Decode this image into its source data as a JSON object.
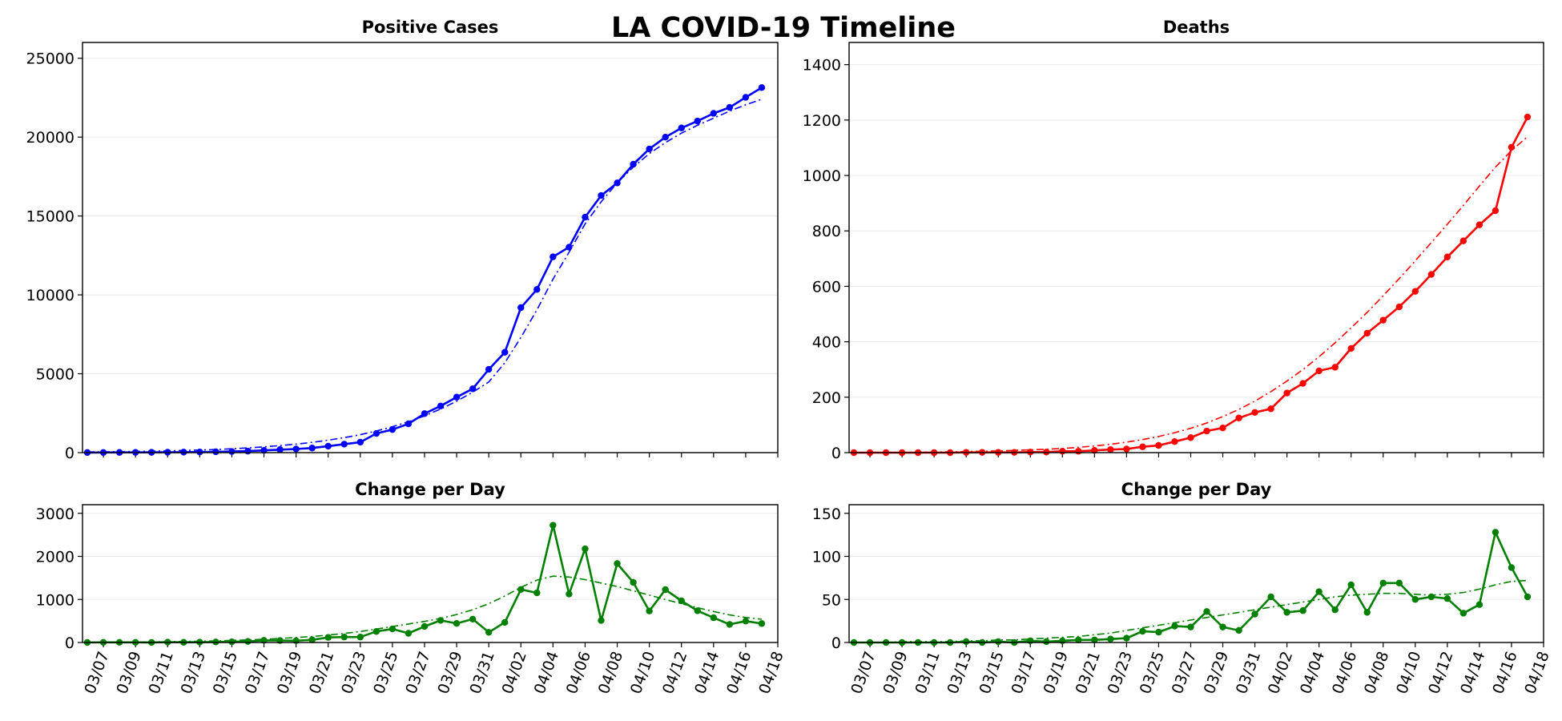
{
  "title": "LA COVID-19 Timeline",
  "colors": {
    "cases": "#0000ff",
    "deaths": "#ff0000",
    "change": "#008000",
    "grid": "#ebebeb"
  },
  "x_tick_labels": [
    "03/07",
    "03/09",
    "03/11",
    "03/13",
    "03/15",
    "03/17",
    "03/19",
    "03/21",
    "03/23",
    "03/25",
    "03/27",
    "03/29",
    "03/31",
    "04/02",
    "04/04",
    "04/06",
    "04/08",
    "04/10",
    "04/12",
    "04/14",
    "04/16",
    "04/18"
  ],
  "chart_data": [
    {
      "id": "cases",
      "type": "line",
      "title": "Positive Cases",
      "x": [
        "03/06",
        "03/07",
        "03/08",
        "03/09",
        "03/10",
        "03/11",
        "03/12",
        "03/13",
        "03/14",
        "03/15",
        "03/16",
        "03/17",
        "03/18",
        "03/19",
        "03/20",
        "03/21",
        "03/22",
        "03/23",
        "03/24",
        "03/25",
        "03/26",
        "03/27",
        "03/28",
        "03/29",
        "03/30",
        "03/31",
        "04/01",
        "04/02",
        "04/03",
        "04/04",
        "04/05",
        "04/06",
        "04/07",
        "04/08",
        "04/09",
        "04/10",
        "04/11",
        "04/12",
        "04/13",
        "04/14",
        "04/15",
        "04/16",
        "04/17"
      ],
      "series": [
        {
          "style": "solid-marker",
          "values": [
            7,
            11,
            14,
            17,
            19,
            27,
            32,
            40,
            53,
            69,
            94,
            144,
            190,
            231,
            292,
            409,
            536,
            662,
            1216,
            1465,
            1829,
            2474,
            2955,
            3518,
            4045,
            5277,
            6360,
            9192,
            10345,
            12411,
            13023,
            14924,
            16298,
            17095,
            18281,
            19250,
            19997,
            20579,
            21017,
            21507,
            21884,
            22522,
            23140
          ]
        },
        {
          "style": "dashdot",
          "values": [
            40,
            50,
            60,
            75,
            90,
            110,
            135,
            165,
            200,
            245,
            300,
            365,
            445,
            540,
            650,
            790,
            950,
            1140,
            1370,
            1640,
            1960,
            2330,
            2760,
            3260,
            3830,
            4480,
            5700,
            7300,
            9050,
            11000,
            12700,
            14500,
            15900,
            17100,
            18100,
            18950,
            19650,
            20250,
            20750,
            21200,
            21650,
            22050,
            22400
          ]
        }
      ],
      "ylim": [
        0,
        26000
      ],
      "yticks": [
        0,
        5000,
        10000,
        15000,
        20000,
        25000
      ],
      "grid": true
    },
    {
      "id": "deaths",
      "type": "line",
      "title": "Deaths",
      "x": [
        "03/06",
        "03/07",
        "03/08",
        "03/09",
        "03/10",
        "03/11",
        "03/12",
        "03/13",
        "03/14",
        "03/15",
        "03/16",
        "03/17",
        "03/18",
        "03/19",
        "03/20",
        "03/21",
        "03/22",
        "03/23",
        "03/24",
        "03/25",
        "03/26",
        "03/27",
        "03/28",
        "03/29",
        "03/30",
        "03/31",
        "04/01",
        "04/02",
        "04/03",
        "04/04",
        "04/05",
        "04/06",
        "04/07",
        "04/08",
        "04/09",
        "04/10",
        "04/11",
        "04/12",
        "04/13",
        "04/14",
        "04/15",
        "04/16",
        "04/17"
      ],
      "series": [
        {
          "style": "solid-marker",
          "values": [
            0,
            0,
            0,
            0,
            0,
            0,
            0,
            1,
            1,
            1,
            1,
            2,
            2,
            5,
            5,
            8,
            11,
            13,
            21,
            26,
            40,
            54,
            78,
            89,
            125,
            145,
            158,
            215,
            250,
            295,
            308,
            376,
            431,
            478,
            526,
            582,
            643,
            706,
            764,
            822,
            873,
            1102,
            1211
          ]
        },
        {
          "style": "dashdot",
          "values": [
            0,
            1,
            1,
            1,
            2,
            2,
            3,
            4,
            5,
            6,
            8,
            10,
            12,
            15,
            19,
            24,
            30,
            38,
            47,
            58,
            72,
            88,
            107,
            130,
            156,
            186,
            220,
            258,
            300,
            346,
            396,
            450,
            506,
            566,
            628,
            692,
            758,
            824,
            892,
            962,
            1030,
            1090,
            1140
          ]
        }
      ],
      "ylim": [
        0,
        1480
      ],
      "yticks": [
        0,
        200,
        400,
        600,
        800,
        1000,
        1200,
        1400
      ],
      "grid": true
    },
    {
      "id": "cases-change",
      "type": "line",
      "title": "Change per Day",
      "x": [
        "03/06",
        "03/07",
        "03/08",
        "03/09",
        "03/10",
        "03/11",
        "03/12",
        "03/13",
        "03/14",
        "03/15",
        "03/16",
        "03/17",
        "03/18",
        "03/19",
        "03/20",
        "03/21",
        "03/22",
        "03/23",
        "03/24",
        "03/25",
        "03/26",
        "03/27",
        "03/28",
        "03/29",
        "03/30",
        "03/31",
        "04/01",
        "04/02",
        "04/03",
        "04/04",
        "04/05",
        "04/06",
        "04/07",
        "04/08",
        "04/09",
        "04/10",
        "04/11",
        "04/12",
        "04/13",
        "04/14",
        "04/15",
        "04/16",
        "04/17"
      ],
      "series": [
        {
          "style": "solid-marker",
          "values": [
            0,
            4,
            3,
            3,
            2,
            8,
            5,
            8,
            13,
            16,
            25,
            50,
            46,
            41,
            61,
            117,
            127,
            126,
            256,
            315,
            214,
            373,
            513,
            443,
            543,
            236,
            467,
            1232,
            1153,
            2723,
            1126,
            2175,
            510,
            1833,
            1395,
            731,
            1228,
            968,
            736,
            575,
            420,
            496,
            440
          ]
        },
        {
          "style": "dashdot",
          "values": [
            5,
            7,
            9,
            12,
            15,
            19,
            24,
            30,
            38,
            48,
            60,
            75,
            93,
            115,
            140,
            172,
            210,
            255,
            310,
            370,
            430,
            490,
            560,
            650,
            760,
            900,
            1080,
            1280,
            1450,
            1540,
            1520,
            1460,
            1380,
            1300,
            1200,
            1100,
            1000,
            900,
            810,
            720,
            640,
            580,
            540
          ]
        }
      ],
      "ylim": [
        0,
        3200
      ],
      "yticks": [
        0,
        1000,
        2000,
        3000
      ],
      "grid": true
    },
    {
      "id": "deaths-change",
      "type": "line",
      "title": "Change per Day",
      "x": [
        "03/06",
        "03/07",
        "03/08",
        "03/09",
        "03/10",
        "03/11",
        "03/12",
        "03/13",
        "03/14",
        "03/15",
        "03/16",
        "03/17",
        "03/18",
        "03/19",
        "03/20",
        "03/21",
        "03/22",
        "03/23",
        "03/24",
        "03/25",
        "03/26",
        "03/27",
        "03/28",
        "03/29",
        "03/30",
        "03/31",
        "04/01",
        "04/02",
        "04/03",
        "04/04",
        "04/05",
        "04/06",
        "04/07",
        "04/08",
        "04/09",
        "04/10",
        "04/11",
        "04/12",
        "04/13",
        "04/14",
        "04/15",
        "04/16",
        "04/17"
      ],
      "series": [
        {
          "style": "solid-marker",
          "values": [
            0,
            0,
            0,
            0,
            0,
            0,
            0,
            1,
            0,
            1,
            0,
            2,
            1,
            2,
            3,
            3,
            4,
            5,
            13,
            12,
            19,
            18,
            36,
            18,
            14,
            33,
            53,
            35,
            37,
            59,
            38,
            67,
            35,
            69,
            69,
            50,
            53,
            51,
            34,
            44,
            128,
            87,
            53
          ]
        },
        {
          "style": "dashdot",
          "values": [
            0,
            0,
            0,
            1,
            1,
            1,
            1,
            2,
            2,
            3,
            3,
            4,
            5,
            6,
            7,
            9,
            11,
            14,
            17,
            20,
            23,
            26,
            29,
            32,
            35,
            38,
            41,
            44,
            47,
            50,
            53,
            55,
            56,
            57,
            57,
            56,
            55,
            56,
            58,
            62,
            67,
            71,
            72
          ]
        }
      ],
      "ylim": [
        0,
        160
      ],
      "yticks": [
        0,
        50,
        100,
        150
      ],
      "grid": true
    }
  ]
}
